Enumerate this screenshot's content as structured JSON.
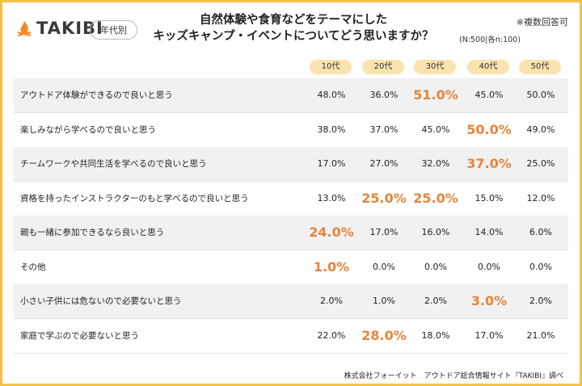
{
  "header": {
    "logo": "TAKIBI",
    "tag": "年代別",
    "title": [
      "自然体験や食育などをテーマにした",
      "キッズキャンプ・イベントについてどう思いますか？"
    ],
    "note": "※複数回答可",
    "sample": "(N:500|各n:100)"
  },
  "table": {
    "columns": [
      "10代",
      "20代",
      "30代",
      "40代",
      "50代"
    ],
    "rows": [
      [
        "アウトドア体験ができるので良いと思う",
        "48.0%",
        "36.0%",
        "51.0%",
        "45.0%",
        "50.0%"
      ],
      [
        "楽しみながら学べるので良いと思う",
        "38.0%",
        "37.0%",
        "45.0%",
        "50.0%",
        "49.0%"
      ],
      [
        "チームワークや共同生活を学べるので良いと思う",
        "17.0%",
        "27.0%",
        "32.0%",
        "37.0%",
        "25.0%"
      ],
      [
        "資格を持ったインストラクターのもと学べるので良いと思う",
        "13.0%",
        "25.0%",
        "25.0%",
        "15.0%",
        "12.0%"
      ],
      [
        "親も一緒に参加できるなら良いと思う",
        "24.0%",
        "17.0%",
        "16.0%",
        "14.0%",
        "6.0%"
      ],
      [
        "その他",
        "1.0%",
        "0.0%",
        "0.0%",
        "0.0%",
        "0.0%"
      ],
      [
        "小さい子供には危ないので必要ないと思う",
        "2.0%",
        "1.0%",
        "2.0%",
        "3.0%",
        "2.0%"
      ],
      [
        "家庭で学ぶので必要ないと思う",
        "22.0%",
        "28.0%",
        "18.0%",
        "17.0%",
        "21.0%"
      ]
    ]
  },
  "footer": {
    "source": "株式会社フォーイット　アウトドア総合情報サイト『TAKIBI』調べ"
  }
}
